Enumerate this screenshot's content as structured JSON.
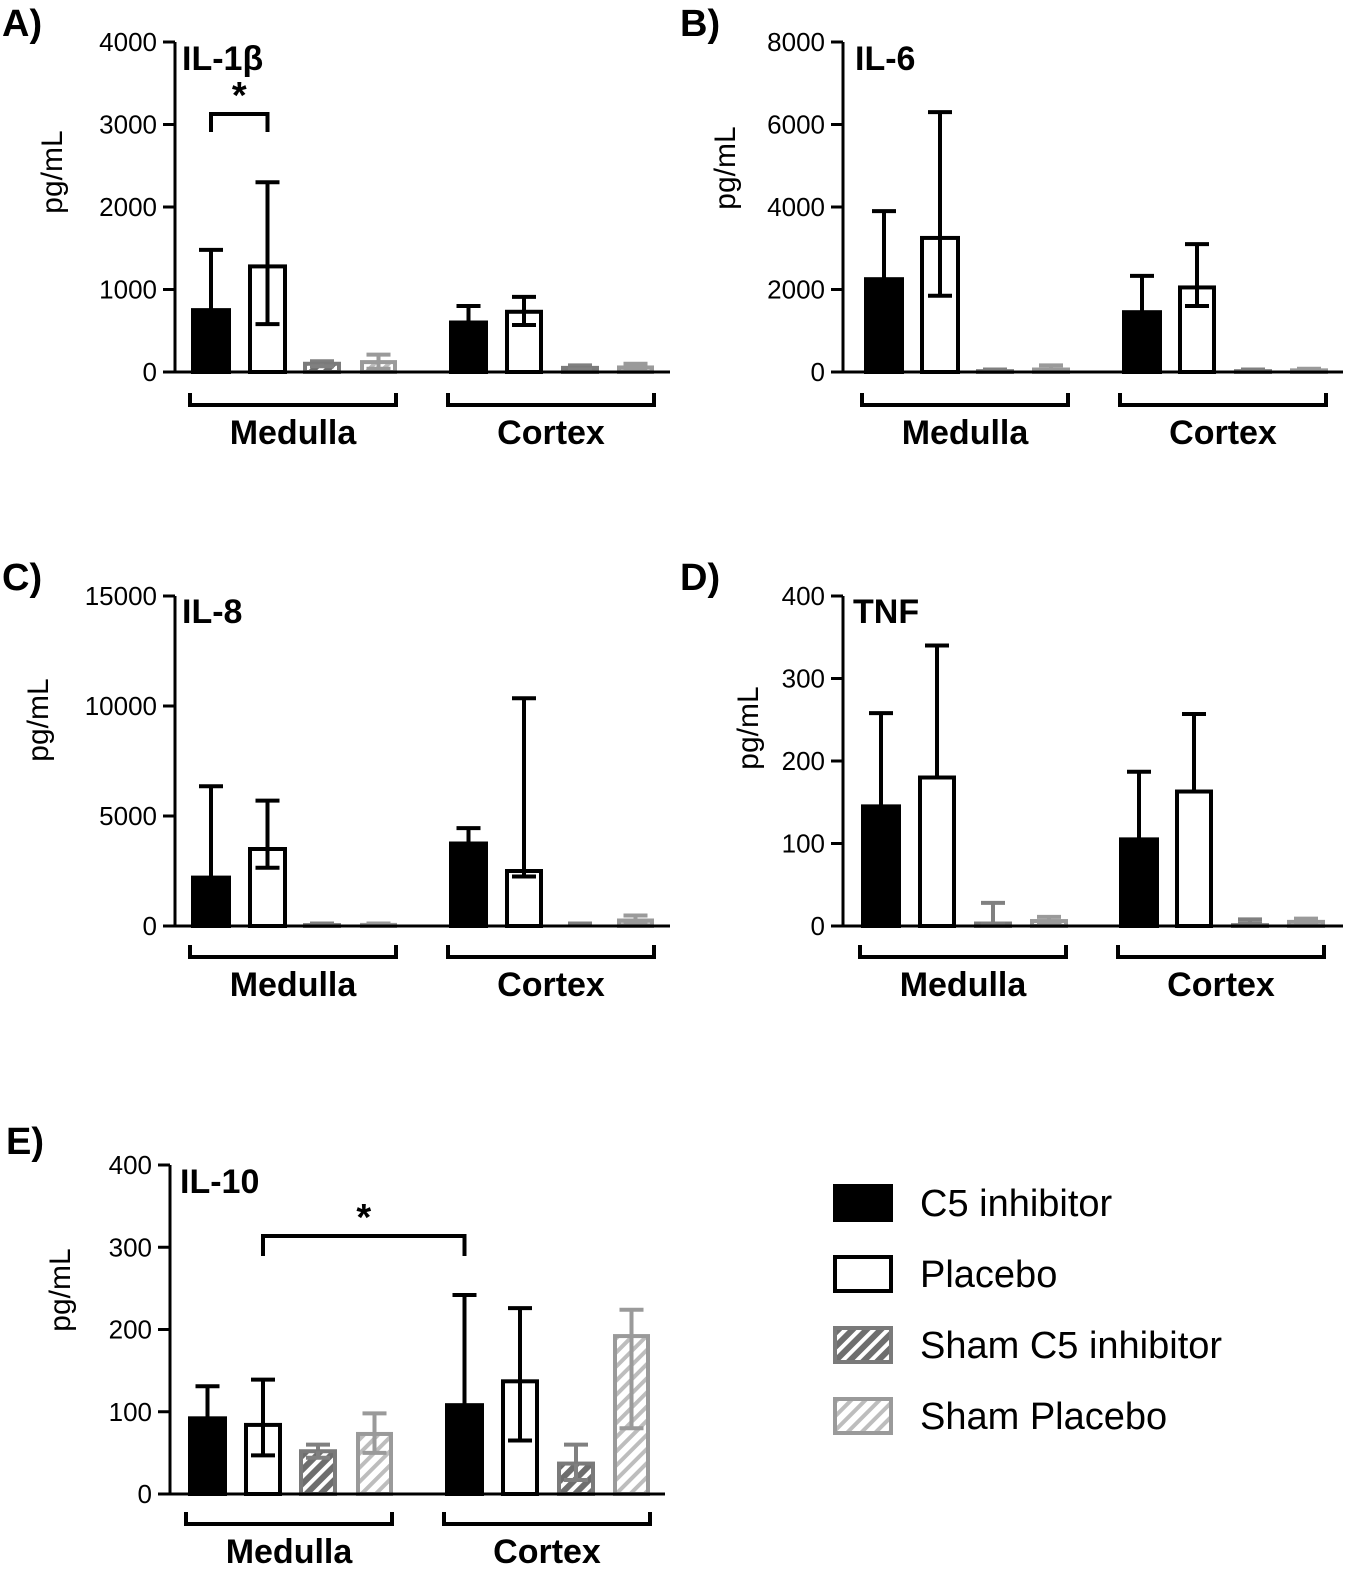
{
  "legend": {
    "items": [
      {
        "label": "C5 inhibitor",
        "style": "solid-black"
      },
      {
        "label": "Placebo",
        "style": "white-outlined"
      },
      {
        "label": "Sham C5 inhibitor",
        "style": "hatched-dark-gray"
      },
      {
        "label": "Sham Placebo",
        "style": "hatched-light-gray"
      }
    ]
  },
  "colors": {
    "c5_inhibitor": "#000000",
    "placebo": "#ffffff",
    "sham_c5_stroke": "#808080",
    "sham_c5_fill": "#6e6e6e",
    "sham_placebo_stroke": "#9a9a9a",
    "sham_placebo_fill": "#cfcfcf"
  },
  "chart_data": [
    {
      "panel": "A)",
      "title": "IL-1β",
      "type": "bar",
      "ylabel": "pg/mL",
      "ylim": [
        0,
        4000
      ],
      "yticks": [
        0,
        1000,
        2000,
        3000,
        4000
      ],
      "groups": [
        "Medulla",
        "Cortex"
      ],
      "series": [
        {
          "name": "C5 inhibitor",
          "values": [
            750,
            600
          ],
          "err_upper": [
            1480,
            800
          ],
          "err_lower": [
            null,
            null
          ]
        },
        {
          "name": "Placebo",
          "values": [
            1280,
            730
          ],
          "err_upper": [
            2300,
            910
          ],
          "err_lower": [
            580,
            570
          ]
        },
        {
          "name": "Sham C5 inhibitor",
          "values": [
            100,
            50
          ],
          "err_upper": [
            130,
            80
          ],
          "err_lower": [
            70,
            30
          ]
        },
        {
          "name": "Sham Placebo",
          "values": [
            120,
            55
          ],
          "err_upper": [
            210,
            100
          ],
          "err_lower": [
            40,
            20
          ]
        }
      ],
      "significance": [
        {
          "label": "*",
          "from": [
            0,
            0
          ],
          "to": [
            0,
            1
          ]
        }
      ]
    },
    {
      "panel": "B)",
      "title": "IL-6",
      "type": "bar",
      "ylabel": "pg/mL",
      "ylim": [
        0,
        8000
      ],
      "yticks": [
        0,
        2000,
        4000,
        6000,
        8000
      ],
      "groups": [
        "Medulla",
        "Cortex"
      ],
      "series": [
        {
          "name": "C5 inhibitor",
          "values": [
            2250,
            1450
          ],
          "err_upper": [
            3900,
            2330
          ],
          "err_lower": [
            null,
            null
          ]
        },
        {
          "name": "Placebo",
          "values": [
            3250,
            2050
          ],
          "err_upper": [
            6300,
            3100
          ],
          "err_lower": [
            1850,
            1600
          ]
        },
        {
          "name": "Sham C5 inhibitor",
          "values": [
            20,
            20
          ],
          "err_upper": [
            40,
            40
          ],
          "err_lower": [
            10,
            10
          ]
        },
        {
          "name": "Sham Placebo",
          "values": [
            60,
            40
          ],
          "err_upper": [
            160,
            80
          ],
          "err_lower": [
            20,
            20
          ]
        }
      ],
      "significance": []
    },
    {
      "panel": "C)",
      "title": "IL-8",
      "type": "bar",
      "ylabel": "pg/mL",
      "ylim": [
        0,
        15000
      ],
      "yticks": [
        0,
        5000,
        10000,
        15000
      ],
      "groups": [
        "Medulla",
        "Cortex"
      ],
      "series": [
        {
          "name": "C5 inhibitor",
          "values": [
            2200,
            3750
          ],
          "err_upper": [
            6350,
            4450
          ],
          "err_lower": [
            null,
            null
          ]
        },
        {
          "name": "Placebo",
          "values": [
            3500,
            2500
          ],
          "err_upper": [
            5700,
            10350
          ],
          "err_lower": [
            2650,
            2250
          ]
        },
        {
          "name": "Sham C5 inhibitor",
          "values": [
            40,
            0
          ],
          "err_upper": [
            70,
            0
          ],
          "err_lower": [
            20,
            0
          ]
        },
        {
          "name": "Sham Placebo",
          "values": [
            50,
            250
          ],
          "err_upper": [
            90,
            480
          ],
          "err_lower": [
            20,
            100
          ]
        }
      ],
      "significance": []
    },
    {
      "panel": "D)",
      "title": "TNF",
      "type": "bar",
      "ylabel": "pg/mL",
      "ylim": [
        0,
        400
      ],
      "yticks": [
        0,
        100,
        200,
        300,
        400
      ],
      "groups": [
        "Medulla",
        "Cortex"
      ],
      "series": [
        {
          "name": "C5 inhibitor",
          "values": [
            145,
            105
          ],
          "err_upper": [
            258,
            187
          ],
          "err_lower": [
            null,
            null
          ]
        },
        {
          "name": "Placebo",
          "values": [
            180,
            163
          ],
          "err_upper": [
            340,
            257
          ],
          "err_lower": [
            null,
            null
          ]
        },
        {
          "name": "Sham C5 inhibitor",
          "values": [
            3,
            1
          ],
          "err_upper": [
            28,
            8
          ],
          "err_lower": [
            0,
            0
          ]
        },
        {
          "name": "Sham Placebo",
          "values": [
            6,
            5
          ],
          "err_upper": [
            11,
            9
          ],
          "err_lower": [
            2,
            1
          ]
        }
      ],
      "significance": []
    },
    {
      "panel": "E)",
      "title": "IL-10",
      "type": "bar",
      "ylabel": "pg/mL",
      "ylim": [
        0,
        400
      ],
      "yticks": [
        0,
        100,
        200,
        300,
        400
      ],
      "groups": [
        "Medulla",
        "Cortex"
      ],
      "series": [
        {
          "name": "C5 inhibitor",
          "values": [
            92,
            108
          ],
          "err_upper": [
            131,
            242
          ],
          "err_lower": [
            null,
            null
          ]
        },
        {
          "name": "Placebo",
          "values": [
            84,
            137
          ],
          "err_upper": [
            139,
            226
          ],
          "err_lower": [
            47,
            65
          ]
        },
        {
          "name": "Sham C5 inhibitor",
          "values": [
            52,
            37
          ],
          "err_upper": [
            60,
            60
          ],
          "err_lower": [
            44,
            17
          ]
        },
        {
          "name": "Sham Placebo",
          "values": [
            73,
            192
          ],
          "err_upper": [
            98,
            224
          ],
          "err_lower": [
            50,
            80
          ]
        }
      ],
      "significance": [
        {
          "label": "*",
          "from": [
            0,
            1
          ],
          "to": [
            1,
            0
          ]
        }
      ]
    }
  ]
}
